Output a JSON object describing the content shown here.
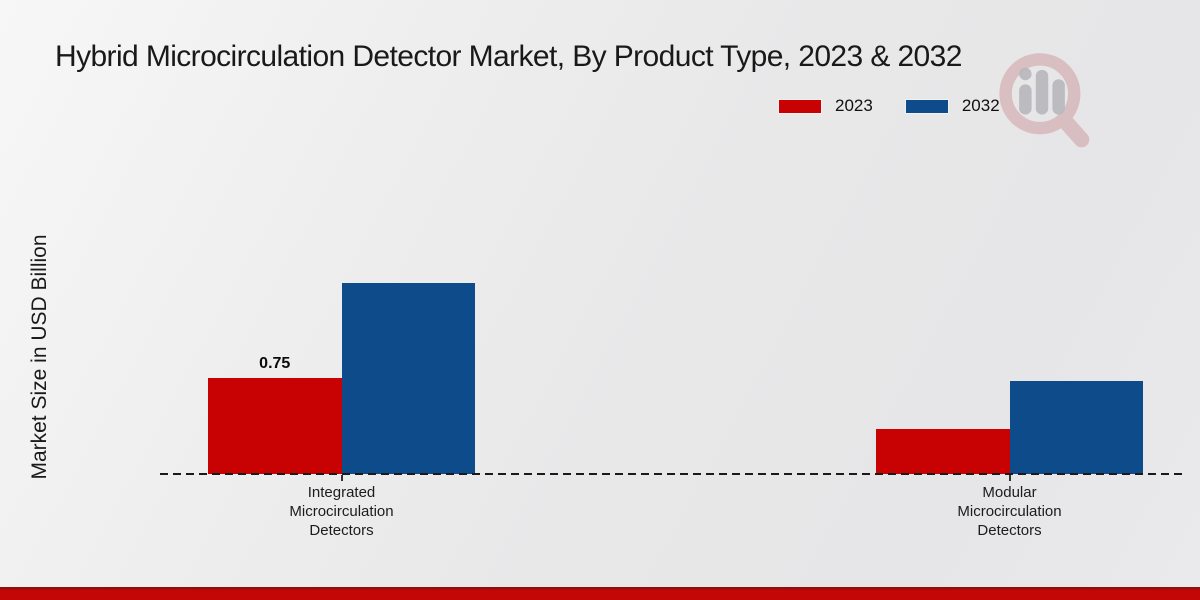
{
  "title": "Hybrid Microcirculation Detector Market, By Product Type, 2023 & 2032",
  "ylabel": "Market Size in USD Billion",
  "colors": {
    "series_2023": "#c80202",
    "series_2032": "#0d4b8b",
    "footer_bar": "#c30707",
    "background": "#e9e9ea",
    "axis_line": "#1a1a1a"
  },
  "watermark": {
    "name": "magnifier-bar-chart-logo",
    "ring_color": "#cf9fa2",
    "bars_color": "#b8b8bc"
  },
  "chart_data": {
    "type": "bar",
    "title": "Hybrid Microcirculation Detector Market, By Product Type, 2023 & 2032",
    "xlabel": "",
    "ylabel": "Market Size in USD Billion",
    "categories": [
      "Integrated Microcirculation Detectors",
      "Modular Microcirculation Detectors"
    ],
    "series": [
      {
        "name": "2023",
        "color": "#c80202",
        "values": [
          0.75,
          0.35
        ]
      },
      {
        "name": "2032",
        "color": "#0d4b8b",
        "values": [
          1.49,
          0.73
        ]
      }
    ],
    "bar_value_labels": [
      {
        "series_index": 0,
        "category_index": 0,
        "text": "0.75"
      }
    ],
    "ylim": [
      0,
      1.6
    ],
    "grid": false,
    "baseline": "dashed",
    "legend_position": "top-right"
  }
}
